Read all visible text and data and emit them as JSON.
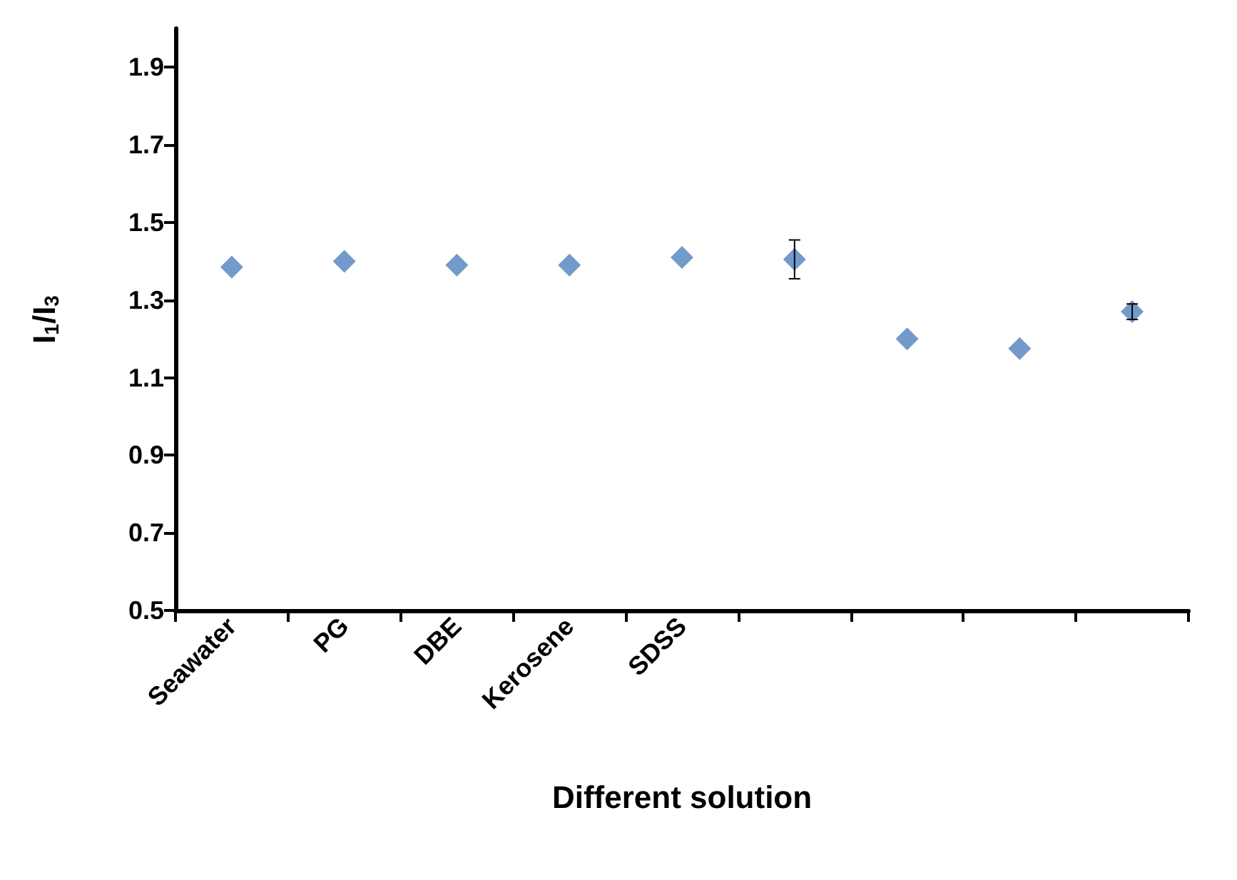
{
  "chart_data": {
    "type": "scatter",
    "xlabel": "Different solution",
    "ylabel": "I$_{1}$/I$_{3}$",
    "categories": [
      "Seawater",
      "PG",
      "DBE",
      "Kerosene",
      "SDSS",
      null,
      null,
      null,
      null
    ],
    "series": [
      {
        "color": "#4f81bd",
        "values": [
          1.385,
          1.4,
          1.39,
          1.39,
          1.41,
          1.405,
          1.2,
          1.175,
          1.27
        ],
        "errors": [
          null,
          null,
          null,
          null,
          null,
          0.05,
          null,
          null,
          0.02
        ]
      }
    ],
    "ylim": [
      0.5,
      2.0
    ],
    "yticks": [
      0.5,
      0.7,
      0.9,
      1.1,
      1.3,
      1.5,
      1.7,
      1.9
    ],
    "grid": false,
    "marker": "diamond"
  }
}
